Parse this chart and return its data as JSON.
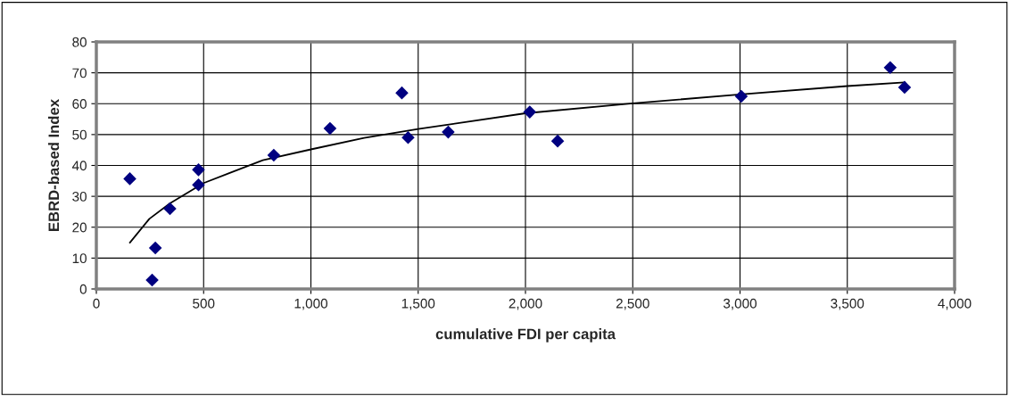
{
  "chart_data": {
    "type": "scatter",
    "xlabel": "cumulative FDI per capita",
    "ylabel": "EBRD-based Index",
    "series": [
      {
        "color": "#000080",
        "marker": "diamond",
        "x": [
          156,
          260,
          275,
          343,
          476,
          476,
          827,
          1089,
          1424,
          1453,
          1640,
          2020,
          2150,
          3006,
          3700,
          3767
        ],
        "values": [
          35.7,
          2.9,
          13.3,
          26.0,
          38.6,
          33.7,
          43.3,
          52.0,
          63.5,
          49.0,
          50.8,
          57.3,
          47.9,
          62.4,
          71.7,
          65.3
        ]
      },
      {
        "type": "line",
        "color": "#000000",
        "marker": "none",
        "x": [
          156,
          247,
          343,
          500,
          776,
          1000,
          1248,
          1500,
          2000,
          2500,
          3000,
          3500,
          3767
        ],
        "values": [
          15.0,
          22.7,
          27.7,
          34.3,
          41.7,
          45.2,
          48.9,
          51.8,
          56.9,
          60.1,
          63.0,
          65.7,
          66.9
        ]
      }
    ],
    "xlim": [
      0,
      4000
    ],
    "ylim": [
      0,
      80
    ],
    "xticks": [
      0,
      500,
      {
        "value": 1000,
        "label": "1,000"
      },
      {
        "value": 1500,
        "label": "1,500"
      },
      {
        "value": 2000,
        "label": "2,000"
      },
      {
        "value": 2500,
        "label": "2,500"
      },
      {
        "value": 3000,
        "label": "3,000"
      },
      {
        "value": 3500,
        "label": "3,500"
      },
      {
        "value": 4000,
        "label": "4,000"
      }
    ],
    "yticks": [
      0,
      10,
      20,
      30,
      40,
      50,
      60,
      70,
      80
    ],
    "grid": true,
    "legend": false
  }
}
